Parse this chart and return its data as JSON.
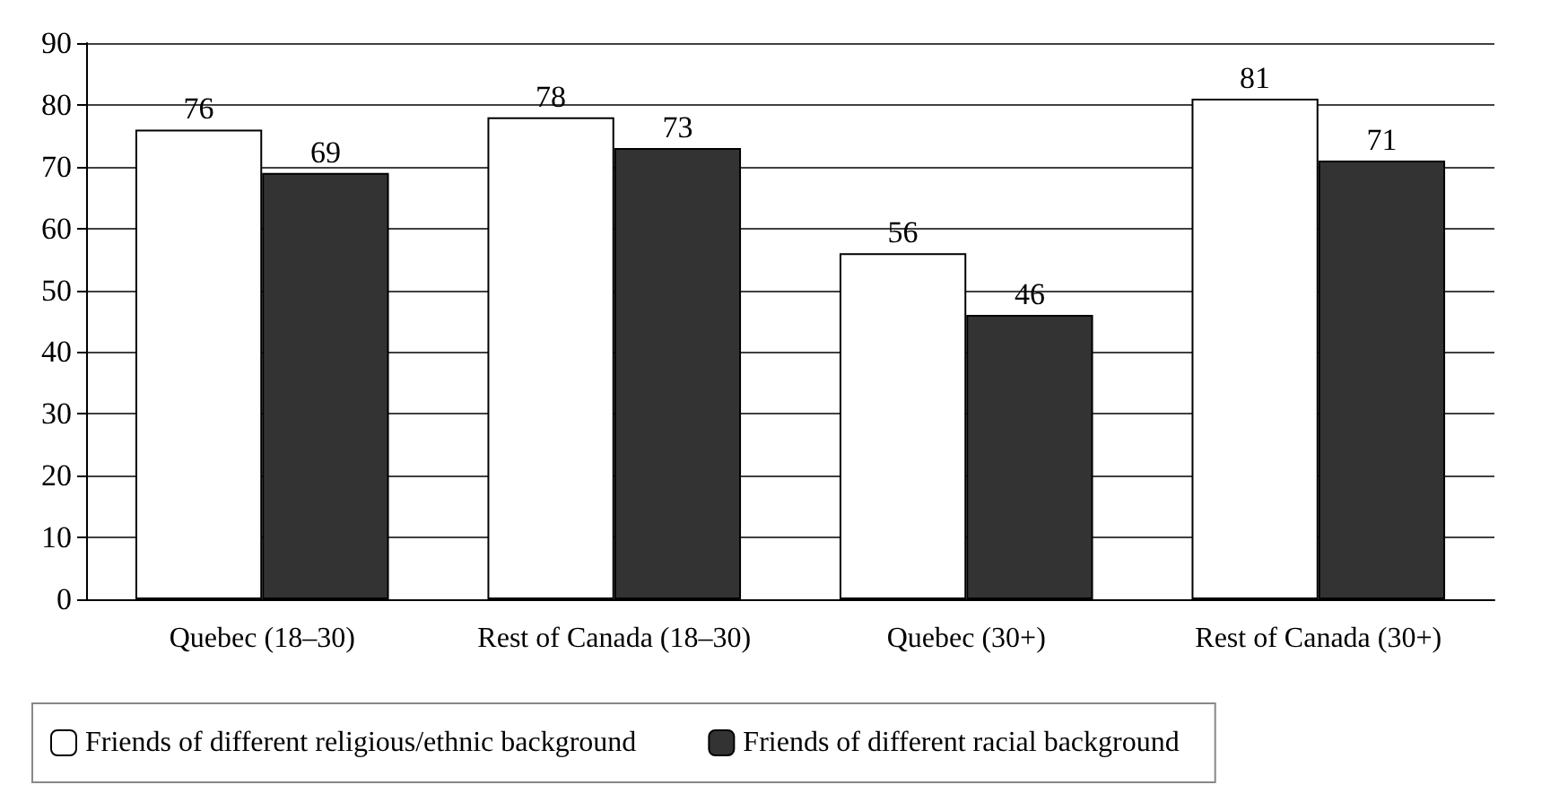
{
  "chart_data": {
    "type": "bar",
    "categories": [
      "Quebec (18–30)",
      "Rest of Canada (18–30)",
      "Quebec (30+)",
      "Rest of Canada (30+)"
    ],
    "series": [
      {
        "name": "Friends of different religious/ethnic background",
        "color": "#ffffff",
        "values": [
          76,
          78,
          56,
          81
        ]
      },
      {
        "name": "Friends of different racial background",
        "color": "#333333",
        "values": [
          69,
          73,
          46,
          71
        ]
      }
    ],
    "ylim": [
      0,
      90
    ],
    "yticks": [
      0,
      10,
      20,
      30,
      40,
      50,
      60,
      70,
      80,
      90
    ],
    "grid": "y",
    "legend": "bottom",
    "data_labels": true
  }
}
